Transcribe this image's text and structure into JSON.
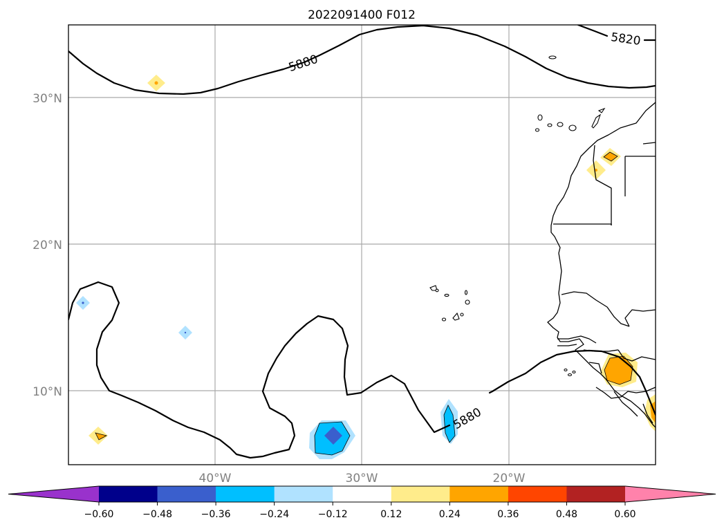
{
  "title": "2022091400 F012",
  "lat_labels": [
    "30°N",
    "20°N",
    "10°N"
  ],
  "lon_labels": [
    "40°W",
    "30°W",
    "20°W"
  ],
  "contour_labels": [
    "5880",
    "5880",
    "5820"
  ],
  "colorbar": {
    "ticks": [
      "−0.60",
      "−0.48",
      "−0.36",
      "−0.24",
      "−0.12",
      "0.12",
      "0.24",
      "0.36",
      "0.48",
      "0.60"
    ],
    "colors": [
      "#9932cc",
      "#00008b",
      "#3a5fcd",
      "#00bfff",
      "#b0e2ff",
      "#ffffff",
      "#ffec8b",
      "#ffa500",
      "#ff4500",
      "#b22222",
      "#ff82ab"
    ]
  }
}
